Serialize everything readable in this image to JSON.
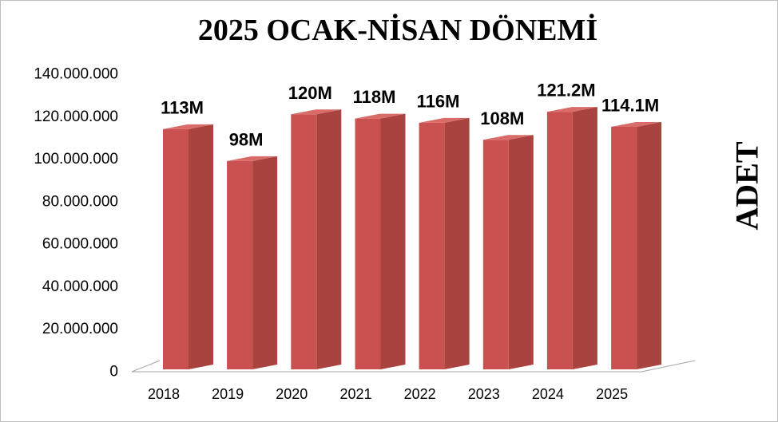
{
  "chart_data": {
    "type": "bar",
    "title": "2025 OCAK-NİSAN DÖNEMİ",
    "ylabel": "ADET",
    "categories": [
      "2018",
      "2019",
      "2020",
      "2021",
      "2022",
      "2023",
      "2024",
      "2025"
    ],
    "values": [
      113000000,
      98000000,
      120000000,
      118000000,
      116000000,
      108000000,
      121200000,
      114100000
    ],
    "data_labels": [
      "113M",
      "98M",
      "120M",
      "118M",
      "116M",
      "108M",
      "121.2M",
      "114.1M"
    ],
    "ylim": [
      0,
      140000000
    ],
    "yticks": [
      0,
      20000000,
      40000000,
      60000000,
      80000000,
      100000000,
      120000000,
      140000000
    ],
    "ytick_labels": [
      "0",
      "20.000.000",
      "40.000.000",
      "60.000.000",
      "80.000.000",
      "100.000.000",
      "120.000.000",
      "140.000.000"
    ],
    "grid": false
  },
  "colors": {
    "bar_front": "#c9514f",
    "bar_side": "#a8433f",
    "bar_top": "#d96b68",
    "floor": "#a6a6a6",
    "border": "#bfbfbf"
  }
}
